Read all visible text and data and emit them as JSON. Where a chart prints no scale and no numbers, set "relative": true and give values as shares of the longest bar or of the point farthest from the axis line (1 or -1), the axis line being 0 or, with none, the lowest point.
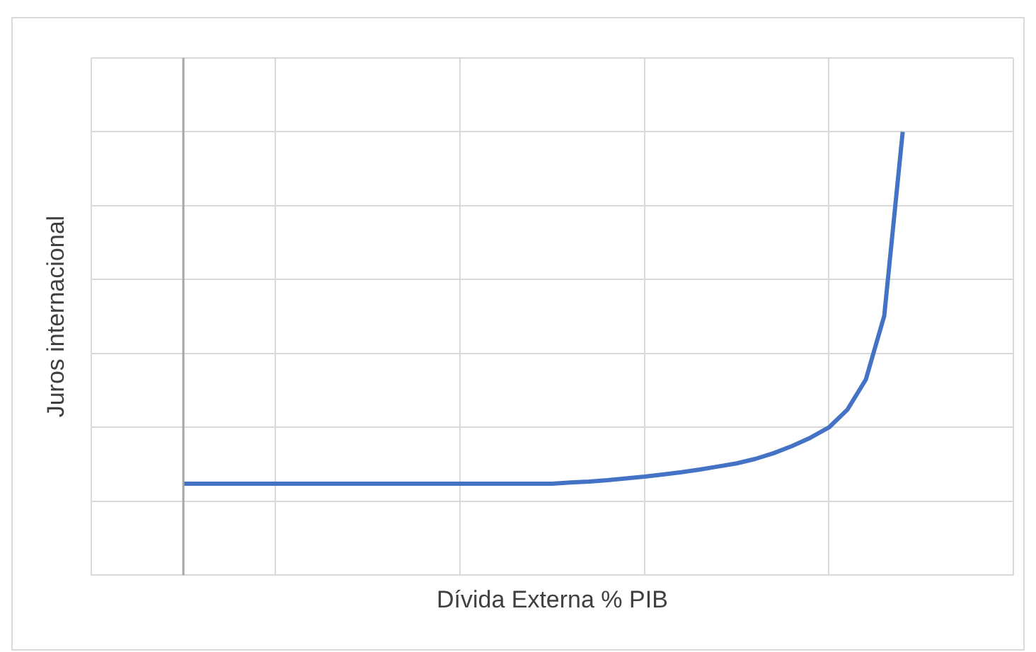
{
  "chart_data": {
    "type": "line",
    "relative": true,
    "xlabel": "Dívida Externa % PIB",
    "ylabel": "Juros internacional",
    "grid": true,
    "legend": false,
    "marker": "none",
    "line_style": "solid",
    "tick_labels": false,
    "categories": [
      null,
      null,
      null,
      null,
      null,
      null,
      null,
      null,
      null,
      null,
      null,
      null,
      null,
      null,
      null,
      null,
      null,
      null,
      null,
      null,
      null,
      null,
      null,
      null,
      null,
      null,
      null,
      null,
      null,
      null,
      null,
      null,
      null,
      null,
      null,
      null,
      null,
      null,
      null,
      null,
      null,
      null,
      null,
      null,
      null,
      null,
      null,
      null,
      null,
      null,
      null
    ],
    "series": [
      {
        "color": "#4472c4",
        "values": [
          null,
          null,
          null,
          null,
          null,
          0.206,
          0.206,
          0.206,
          0.206,
          0.206,
          0.206,
          0.206,
          0.206,
          0.206,
          0.206,
          0.206,
          0.206,
          0.206,
          0.206,
          0.206,
          0.206,
          0.206,
          0.206,
          0.206,
          0.206,
          0.206,
          0.209,
          0.211,
          0.214,
          0.218,
          0.222,
          0.227,
          0.232,
          0.238,
          0.245,
          0.252,
          0.262,
          0.275,
          0.291,
          0.31,
          0.333,
          0.373,
          0.441,
          0.585,
          1,
          null,
          null,
          null,
          null,
          null,
          null
        ]
      }
    ]
  }
}
